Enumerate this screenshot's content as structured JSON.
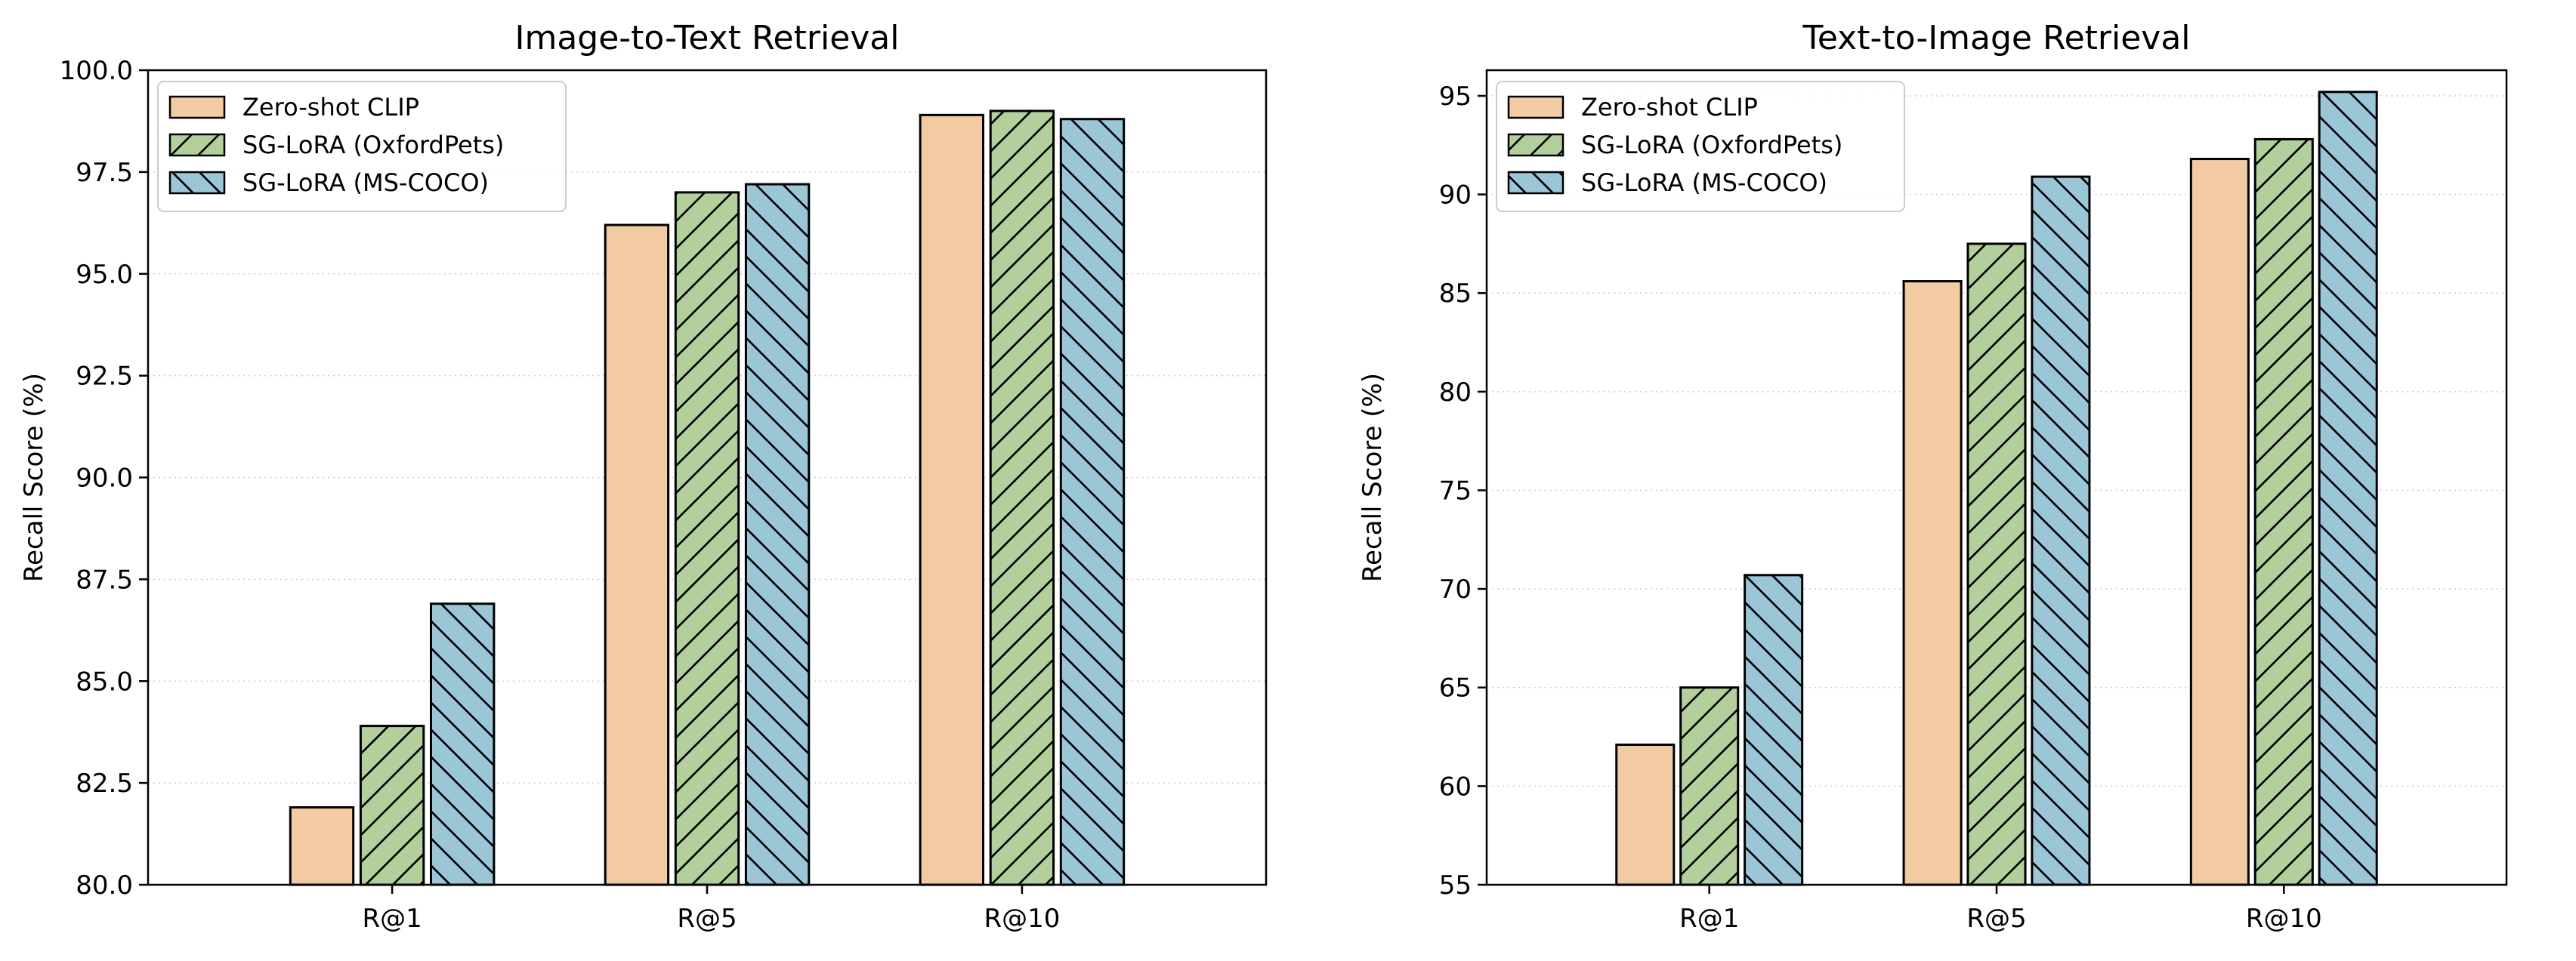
{
  "chart_data": [
    {
      "type": "bar",
      "title": "Image-to-Text Retrieval",
      "xlabel": "",
      "ylabel": "Recall Score (%)",
      "categories": [
        "R@1",
        "R@5",
        "R@10"
      ],
      "ylim": [
        80,
        100
      ],
      "yticks": [
        80,
        82.5,
        85,
        87.5,
        90,
        92.5,
        95,
        97.5,
        100
      ],
      "ytick_labels": [
        "80.0",
        "82.5",
        "85.0",
        "87.5",
        "90.0",
        "92.5",
        "95.0",
        "97.5",
        "100.0"
      ],
      "grid": "y-dotted",
      "legend_position": "upper-left",
      "series": [
        {
          "name": "Zero-shot CLIP",
          "values": [
            81.9,
            96.2,
            98.9
          ]
        },
        {
          "name": "SG-LoRA (OxfordPets)",
          "values": [
            83.9,
            97.0,
            99.0
          ]
        },
        {
          "name": "SG-LoRA (MS-COCO)",
          "values": [
            86.9,
            97.2,
            98.8
          ]
        }
      ]
    },
    {
      "type": "bar",
      "title": "Text-to-Image Retrieval",
      "xlabel": "",
      "ylabel": "Recall Score (%)",
      "categories": [
        "R@1",
        "R@5",
        "R@10"
      ],
      "ylim": [
        55,
        96.3
      ],
      "yticks": [
        55,
        60,
        65,
        70,
        75,
        80,
        85,
        90,
        95
      ],
      "ytick_labels": [
        "55",
        "60",
        "65",
        "70",
        "75",
        "80",
        "85",
        "90",
        "95"
      ],
      "grid": "y-dotted",
      "legend_position": "upper-left",
      "series": [
        {
          "name": "Zero-shot CLIP",
          "values": [
            62.1,
            85.6,
            91.8
          ]
        },
        {
          "name": "SG-LoRA (OxfordPets)",
          "values": [
            65.0,
            87.5,
            92.8
          ]
        },
        {
          "name": "SG-LoRA (MS-COCO)",
          "values": [
            70.7,
            90.9,
            95.2
          ]
        }
      ]
    }
  ],
  "series_style": [
    {
      "color": "#f2cba3",
      "hatch": "none"
    },
    {
      "color": "#b3cf9c",
      "hatch": "forward-diagonal"
    },
    {
      "color": "#9bc6d8",
      "hatch": "back-diagonal"
    }
  ],
  "colors": {
    "edge": "#000000",
    "grid": "#cccccc",
    "background": "#ffffff"
  }
}
